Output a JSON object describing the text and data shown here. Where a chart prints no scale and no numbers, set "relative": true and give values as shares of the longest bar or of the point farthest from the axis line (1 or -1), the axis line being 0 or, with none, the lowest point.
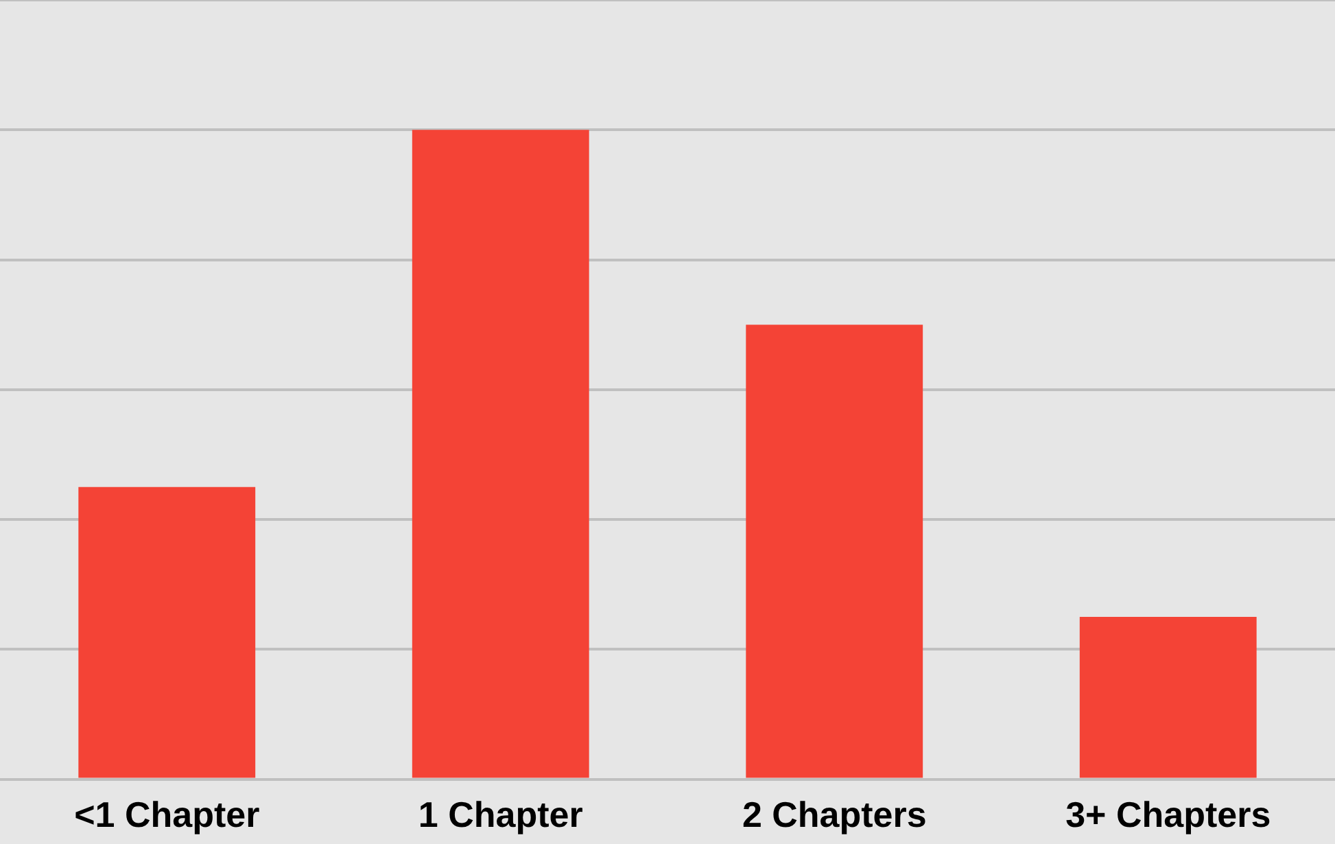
{
  "chart_data": {
    "type": "bar",
    "categories": [
      "<1 Chapter",
      "1 Chapter",
      "2 Chapters",
      "3+ Chapters"
    ],
    "values": [
      0.45,
      1,
      0.7,
      0.25
    ],
    "color": "#f44336",
    "relative": true,
    "grid": "y",
    "legend": false
  }
}
